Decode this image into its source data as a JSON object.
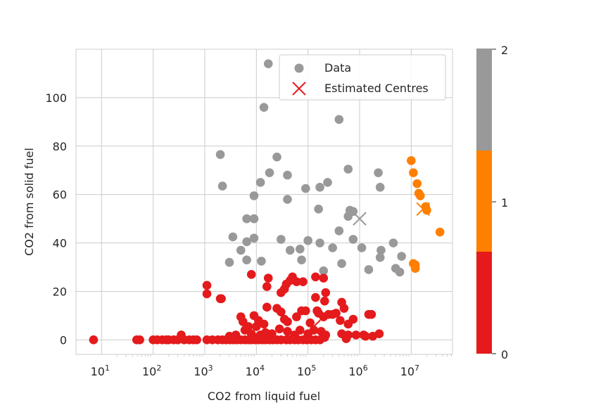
{
  "chart_data": {
    "type": "scatter",
    "title": "",
    "xlabel": "CO2 from liquid fuel",
    "ylabel": "CO2 from solid fuel",
    "x_scale": "log",
    "xlim": [
      3.2,
      63000000
    ],
    "ylim": [
      -6,
      120
    ],
    "x_ticks": [
      10,
      100,
      1000,
      10000,
      100000,
      1000000,
      10000000
    ],
    "y_ticks": [
      0,
      20,
      40,
      60,
      80,
      100
    ],
    "y_tick_labels": [
      "0",
      "20",
      "40",
      "60",
      "80",
      "100"
    ],
    "x_tick_base": "10",
    "x_tick_exponents": [
      "1",
      "2",
      "3",
      "4",
      "5",
      "6",
      "7"
    ],
    "grid": true,
    "legend": {
      "position": "top-right",
      "entries": [
        {
          "label": "Data",
          "marker": "circle",
          "color": "#999999"
        },
        {
          "label": "Estimated Centres",
          "marker": "x",
          "color": "#e41a1c"
        }
      ]
    },
    "colorbar": {
      "ticks": [
        "0",
        "1",
        "2"
      ],
      "colors": [
        "#e41a1c",
        "#ff7f00",
        "#999999"
      ],
      "range": [
        0,
        2
      ]
    },
    "cluster_colors": {
      "0": "#e41a1c",
      "1": "#ff7f00",
      "2": "#999999"
    },
    "series": [
      {
        "cluster": 2,
        "points": [
          [
            17000,
            114
          ],
          [
            14000,
            96
          ],
          [
            400000,
            91
          ],
          [
            2000,
            76.5
          ],
          [
            25000,
            75.5
          ],
          [
            600000,
            70.5
          ],
          [
            2200,
            63.5
          ],
          [
            2300000,
            69
          ],
          [
            18000,
            69
          ],
          [
            40000,
            68
          ],
          [
            12000,
            65
          ],
          [
            240000,
            65
          ],
          [
            2500000,
            63
          ],
          [
            90000,
            62.5
          ],
          [
            170000,
            63
          ],
          [
            9000,
            59.5
          ],
          [
            40000,
            58
          ],
          [
            160000,
            54
          ],
          [
            650000,
            53.5
          ],
          [
            600000,
            51
          ],
          [
            750000,
            53
          ],
          [
            6500,
            50
          ],
          [
            9000,
            50
          ],
          [
            400000,
            45
          ],
          [
            3500,
            42.5
          ],
          [
            9000,
            42
          ],
          [
            30000,
            41.5
          ],
          [
            100000,
            41
          ],
          [
            170000,
            40
          ],
          [
            750000,
            41.5
          ],
          [
            6500,
            40.5
          ],
          [
            45000,
            37
          ],
          [
            70000,
            37.5
          ],
          [
            300000,
            38
          ],
          [
            1100000,
            38
          ],
          [
            2600000,
            37
          ],
          [
            4500000,
            40
          ],
          [
            5000,
            37
          ],
          [
            3000,
            32
          ],
          [
            6500,
            33
          ],
          [
            12500,
            32.5
          ],
          [
            75000,
            33
          ],
          [
            200000,
            28.5
          ],
          [
            450000,
            31.5
          ],
          [
            1500000,
            29
          ],
          [
            2500000,
            34
          ],
          [
            6500000,
            34.5
          ],
          [
            5000000,
            29.5
          ],
          [
            6000000,
            28
          ]
        ]
      },
      {
        "cluster": 1,
        "points": [
          [
            10000000,
            74
          ],
          [
            11000000,
            69
          ],
          [
            13000000,
            64.5
          ],
          [
            14000000,
            60.5
          ],
          [
            15000000,
            59.5
          ],
          [
            19000000,
            55
          ],
          [
            20000000,
            53.5
          ],
          [
            36000000,
            44.5
          ],
          [
            11000000,
            31.5
          ],
          [
            12000000,
            31
          ],
          [
            12000000,
            29.5
          ]
        ]
      },
      {
        "cluster": 0,
        "points": [
          [
            7,
            0
          ],
          [
            48,
            0
          ],
          [
            55,
            0
          ],
          [
            100,
            0
          ],
          [
            120,
            0
          ],
          [
            150,
            0
          ],
          [
            180,
            0
          ],
          [
            200,
            0
          ],
          [
            250,
            0
          ],
          [
            300,
            0
          ],
          [
            350,
            2
          ],
          [
            400,
            0
          ],
          [
            500,
            0
          ],
          [
            600,
            0
          ],
          [
            700,
            0
          ],
          [
            1100,
            0
          ],
          [
            1400,
            0
          ],
          [
            1800,
            0
          ],
          [
            2200,
            0
          ],
          [
            2600,
            0
          ],
          [
            3100,
            0
          ],
          [
            3600,
            0
          ],
          [
            4200,
            0
          ],
          [
            5000,
            0
          ],
          [
            6000,
            0
          ],
          [
            7000,
            0
          ],
          [
            8000,
            0
          ],
          [
            9500,
            0
          ],
          [
            11000,
            0
          ],
          [
            13000,
            0
          ],
          [
            15000,
            0
          ],
          [
            18000,
            0
          ],
          [
            21000,
            0
          ],
          [
            25000,
            0
          ],
          [
            30000,
            0
          ],
          [
            38000,
            0
          ],
          [
            45000,
            0
          ],
          [
            55000,
            0
          ],
          [
            65000,
            0
          ],
          [
            80000,
            0
          ],
          [
            95000,
            0
          ],
          [
            115000,
            0
          ],
          [
            140000,
            0
          ],
          [
            170000,
            0
          ],
          [
            210000,
            1
          ],
          [
            1100,
            22.5
          ],
          [
            1100,
            19
          ],
          [
            2000,
            17
          ],
          [
            2100,
            17
          ],
          [
            8000,
            27
          ],
          [
            16000,
            22
          ],
          [
            17000,
            25.5
          ],
          [
            30000,
            19.5
          ],
          [
            35000,
            21
          ],
          [
            38000,
            23
          ],
          [
            45000,
            24.5
          ],
          [
            50000,
            26
          ],
          [
            60000,
            24
          ],
          [
            80000,
            24
          ],
          [
            140000,
            26
          ],
          [
            200000,
            25.5
          ],
          [
            220000,
            19.5
          ],
          [
            140000,
            17.5
          ],
          [
            210000,
            16
          ],
          [
            5000,
            9.5
          ],
          [
            5500,
            7.5
          ],
          [
            7000,
            5.5
          ],
          [
            9000,
            10
          ],
          [
            10000,
            5.5
          ],
          [
            11000,
            8
          ],
          [
            14000,
            6.5
          ],
          [
            16000,
            13.5
          ],
          [
            25000,
            13
          ],
          [
            30000,
            11.5
          ],
          [
            35000,
            8.5
          ],
          [
            40000,
            7.5
          ],
          [
            60000,
            9.5
          ],
          [
            75000,
            12
          ],
          [
            90000,
            12
          ],
          [
            110000,
            7
          ],
          [
            150000,
            12
          ],
          [
            160000,
            11
          ],
          [
            200000,
            9.5
          ],
          [
            250000,
            10.5
          ],
          [
            300000,
            10.5
          ],
          [
            350000,
            11
          ],
          [
            450000,
            15.5
          ],
          [
            500000,
            13
          ],
          [
            420000,
            8
          ],
          [
            600000,
            6.5
          ],
          [
            750000,
            8.5
          ],
          [
            450000,
            2.5
          ],
          [
            550000,
            0.5
          ],
          [
            600000,
            2
          ],
          [
            850000,
            2
          ],
          [
            1200000,
            2
          ],
          [
            1500000,
            10.5
          ],
          [
            1700000,
            10.5
          ],
          [
            1300000,
            1.5
          ],
          [
            1800000,
            1.5
          ],
          [
            2400000,
            2.5
          ],
          [
            4000,
            2
          ],
          [
            6000,
            4
          ],
          [
            8000,
            2.5
          ],
          [
            12000,
            2
          ],
          [
            15000,
            3
          ],
          [
            20000,
            2.5
          ],
          [
            28000,
            4.5
          ],
          [
            40000,
            3.5
          ],
          [
            55000,
            2
          ],
          [
            70000,
            4
          ],
          [
            100000,
            2.5
          ],
          [
            130000,
            4
          ],
          [
            180000,
            3.5
          ],
          [
            220000,
            2
          ],
          [
            3000,
            1.5
          ],
          [
            9000,
            1
          ],
          [
            16000,
            1
          ]
        ]
      }
    ],
    "centres": [
      {
        "cluster": 2,
        "x": 1000000,
        "y": 50
      },
      {
        "cluster": 1,
        "x": 17000000,
        "y": 54
      },
      {
        "cluster": 0,
        "x": 130000,
        "y": 5.5
      }
    ]
  }
}
